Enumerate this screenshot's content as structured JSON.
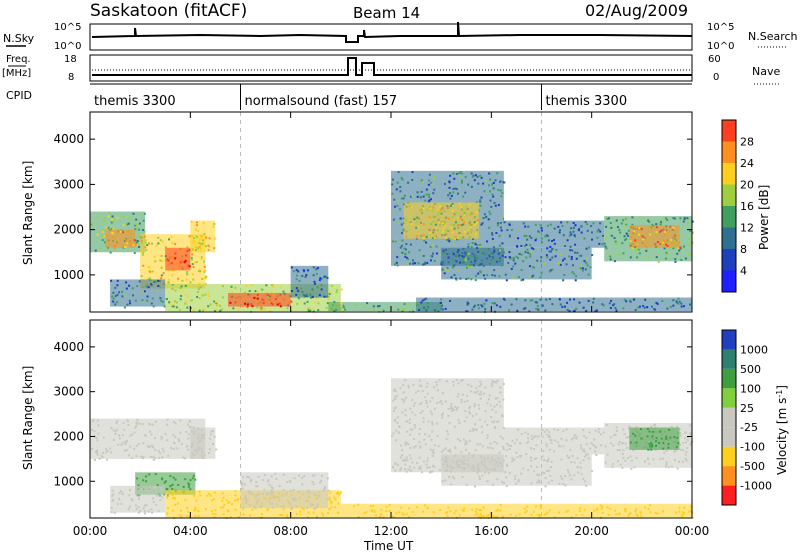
{
  "header": {
    "station": "Saskatoon (fitACF)",
    "beam": "Beam 14",
    "date": "02/Aug/2009"
  },
  "panel_labels": {
    "nsky": "N.Sky",
    "nsearch": "N.Search",
    "freq_line1": "Freq.",
    "freq_line2": "[MHz]",
    "nave": "Nave",
    "cpid": "CPID",
    "nsky_tick_top": "10^5",
    "nsky_tick_bottom": "10^0",
    "freq_tick_top": "18",
    "freq_tick_bottom": "8",
    "nave_tick_top": "60",
    "nave_tick_bottom": "0"
  },
  "cpid_segments": [
    {
      "label": "themis 3300",
      "start_hour": 0,
      "end_hour": 6
    },
    {
      "label": "normalsound (fast) 157",
      "start_hour": 6,
      "end_hour": 18
    },
    {
      "label": "themis 3300",
      "start_hour": 18,
      "end_hour": 24
    }
  ],
  "colors": {
    "power_scale": [
      "#1f1fff",
      "#1f3fbf",
      "#2f6f8f",
      "#3f9f5f",
      "#9fcf3f",
      "#ffcf1f",
      "#ff8f1f",
      "#ff3f1f",
      "#df0000"
    ],
    "velocity_scale": [
      "#1f3fbf",
      "#2f7f6f",
      "#3f9f3f",
      "#7fcf3f",
      "#c8c8c0",
      "#c8c8c0",
      "#ffcf1f",
      "#ff8f1f",
      "#ff1f1f"
    ]
  },
  "chart_data": [
    {
      "type": "heatmap",
      "title": "",
      "xlabel": "",
      "ylabel": "Slant Range [km]",
      "xlim": [
        0,
        24
      ],
      "ylim": [
        180,
        4600
      ],
      "yticks": [
        "1000",
        "2000",
        "3000",
        "4000"
      ],
      "colorbar": {
        "label": "Power [dB]",
        "ticks": [
          "4",
          "8",
          "12",
          "16",
          "20",
          "24",
          "28"
        ],
        "range": [
          0,
          32
        ]
      },
      "echo_regions": [
        {
          "t0": 0.0,
          "t1": 2.2,
          "r0": 1500,
          "r1": 2400,
          "level": 14
        },
        {
          "t0": 0.6,
          "t1": 1.8,
          "r0": 1600,
          "r1": 2000,
          "level": 22
        },
        {
          "t0": 2.0,
          "t1": 4.6,
          "r0": 700,
          "r1": 1900,
          "level": 18
        },
        {
          "t0": 3.0,
          "t1": 4.0,
          "r0": 1100,
          "r1": 1600,
          "level": 26
        },
        {
          "t0": 4.0,
          "t1": 5.0,
          "r0": 1500,
          "r1": 2200,
          "level": 20
        },
        {
          "t0": 0.8,
          "t1": 3.0,
          "r0": 300,
          "r1": 900,
          "level": 10
        },
        {
          "t0": 3.0,
          "t1": 10.0,
          "r0": 200,
          "r1": 800,
          "level": 16
        },
        {
          "t0": 5.5,
          "t1": 8.0,
          "r0": 300,
          "r1": 600,
          "level": 26
        },
        {
          "t0": 8.0,
          "t1": 9.5,
          "r0": 500,
          "r1": 1200,
          "level": 8
        },
        {
          "t0": 9.5,
          "t1": 14.0,
          "r0": 200,
          "r1": 400,
          "level": 14
        },
        {
          "t0": 12.0,
          "t1": 16.5,
          "r0": 1200,
          "r1": 3300,
          "level": 10
        },
        {
          "t0": 12.5,
          "t1": 15.5,
          "r0": 1800,
          "r1": 2600,
          "level": 18
        },
        {
          "t0": 14.0,
          "t1": 20.0,
          "r0": 900,
          "r1": 1600,
          "level": 10
        },
        {
          "t0": 16.5,
          "t1": 20.5,
          "r0": 1600,
          "r1": 2200,
          "level": 8
        },
        {
          "t0": 20.5,
          "t1": 24.0,
          "r0": 1300,
          "r1": 2300,
          "level": 12
        },
        {
          "t0": 21.5,
          "t1": 23.5,
          "r0": 1600,
          "r1": 2100,
          "level": 22
        },
        {
          "t0": 13.0,
          "t1": 24.0,
          "r0": 200,
          "r1": 500,
          "level": 8
        }
      ]
    },
    {
      "type": "heatmap",
      "title": "",
      "xlabel": "Time UT",
      "ylabel": "Slant Range [km]",
      "xlim": [
        0,
        24
      ],
      "ylim": [
        180,
        4600
      ],
      "xticks": [
        "00:00",
        "04:00",
        "08:00",
        "12:00",
        "16:00",
        "20:00",
        "00:00"
      ],
      "yticks": [
        "1000",
        "2000",
        "3000",
        "4000"
      ],
      "colorbar": {
        "label": "Velocity [m s^-1]",
        "ticks": [
          "1000",
          "500",
          "100",
          "25",
          "-25",
          "-100",
          "-500",
          "-1000"
        ]
      },
      "echo_regions": [
        {
          "t0": 0.0,
          "t1": 4.6,
          "r0": 1500,
          "r1": 2400,
          "velocity": 0
        },
        {
          "t0": 1.8,
          "t1": 4.2,
          "r0": 700,
          "r1": 1200,
          "velocity": 150
        },
        {
          "t0": 4.0,
          "t1": 5.0,
          "r0": 1500,
          "r1": 2200,
          "velocity": 0
        },
        {
          "t0": 0.8,
          "t1": 3.0,
          "r0": 300,
          "r1": 900,
          "velocity": 0
        },
        {
          "t0": 3.0,
          "t1": 10.0,
          "r0": 200,
          "r1": 800,
          "velocity": -40
        },
        {
          "t0": 6.0,
          "t1": 9.5,
          "r0": 400,
          "r1": 1200,
          "velocity": 0
        },
        {
          "t0": 10.0,
          "t1": 16.0,
          "r0": 200,
          "r1": 500,
          "velocity": -80
        },
        {
          "t0": 12.0,
          "t1": 16.5,
          "r0": 1200,
          "r1": 3300,
          "velocity": 0
        },
        {
          "t0": 14.0,
          "t1": 20.0,
          "r0": 900,
          "r1": 1600,
          "velocity": 0
        },
        {
          "t0": 16.5,
          "t1": 20.5,
          "r0": 1600,
          "r1": 2200,
          "velocity": 0
        },
        {
          "t0": 20.5,
          "t1": 24.0,
          "r0": 1300,
          "r1": 2300,
          "velocity": 0
        },
        {
          "t0": 21.5,
          "t1": 23.5,
          "r0": 1700,
          "r1": 2200,
          "velocity": 200
        },
        {
          "t0": 16.0,
          "t1": 24.0,
          "r0": 200,
          "r1": 500,
          "velocity": -40
        }
      ]
    }
  ]
}
